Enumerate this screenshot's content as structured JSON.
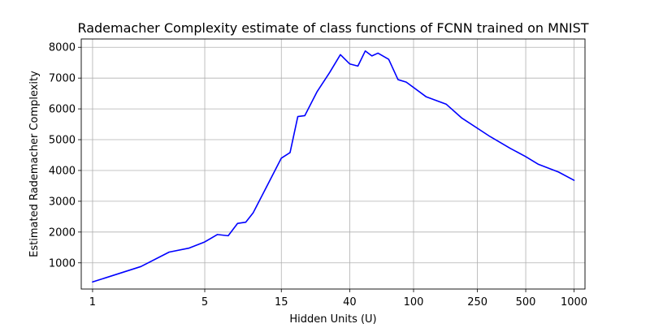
{
  "chart_data": {
    "type": "line",
    "title": "Rademacher Complexity estimate of class functions of FCNN trained on MNIST",
    "xlabel": "Hidden Units (U)",
    "ylabel": "Estimated Rademacher Complexity",
    "x_scale": "log",
    "xlim": [
      0.85,
      1170
    ],
    "ylim": [
      150,
      8270
    ],
    "x_ticks": [
      1,
      5,
      15,
      40,
      100,
      250,
      500,
      1000
    ],
    "x_tick_labels": [
      "1",
      "5",
      "15",
      "40",
      "100",
      "250",
      "500",
      "1000"
    ],
    "y_ticks": [
      1000,
      2000,
      3000,
      4000,
      5000,
      6000,
      7000,
      8000
    ],
    "y_tick_labels": [
      "1000",
      "2000",
      "3000",
      "4000",
      "5000",
      "6000",
      "7000",
      "8000"
    ],
    "grid": true,
    "legend": "none",
    "series": [
      {
        "color": "#0000ff",
        "x": [
          1,
          2,
          3,
          4,
          5,
          6,
          7,
          8,
          9,
          10,
          12,
          15,
          17,
          19,
          21,
          25,
          30,
          35,
          40,
          45,
          50,
          55,
          60,
          70,
          80,
          90,
          120,
          160,
          200,
          300,
          400,
          500,
          600,
          800,
          1000
        ],
        "y": [
          380,
          880,
          1350,
          1480,
          1680,
          1920,
          1880,
          2280,
          2320,
          2620,
          3420,
          4400,
          4580,
          5750,
          5780,
          6550,
          7180,
          7760,
          7460,
          7390,
          7880,
          7720,
          7810,
          7610,
          6950,
          6870,
          6390,
          6150,
          5700,
          5100,
          4720,
          4450,
          4200,
          3950,
          3680
        ]
      }
    ]
  }
}
